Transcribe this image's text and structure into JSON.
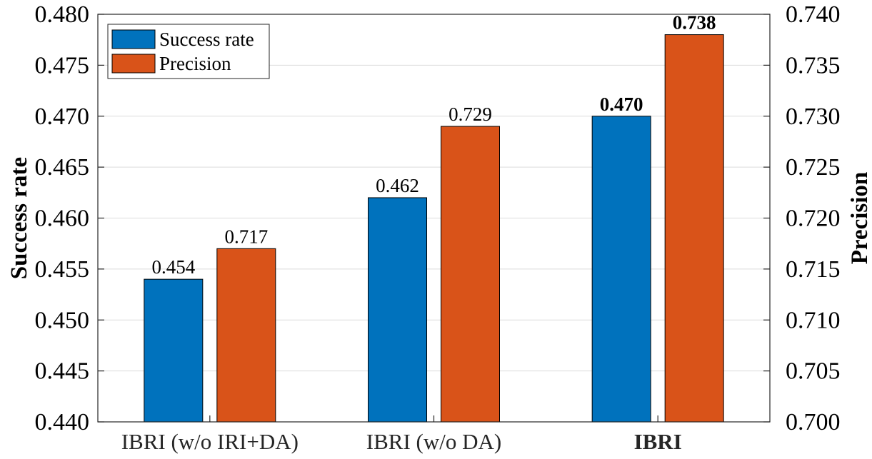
{
  "chart_data": {
    "type": "bar",
    "categories": [
      "IBRI (w/o IRI+DA)",
      "IBRI (w/o DA)",
      "IBRI"
    ],
    "category_bold": [
      false,
      false,
      true
    ],
    "series": [
      {
        "name": "Success rate",
        "axis": "left",
        "values": [
          0.454,
          0.462,
          0.47
        ],
        "labels": [
          "0.454",
          "0.462",
          "0.470"
        ],
        "label_bold": [
          false,
          false,
          true
        ],
        "color": "#0072BD"
      },
      {
        "name": "Precision",
        "axis": "right",
        "values": [
          0.717,
          0.729,
          0.738
        ],
        "labels": [
          "0.717",
          "0.729",
          "0.738"
        ],
        "label_bold": [
          false,
          false,
          true
        ],
        "color": "#D95319"
      }
    ],
    "ylabel_left": "Success rate",
    "ylabel_right": "Precision",
    "ylim_left": [
      0.44,
      0.48
    ],
    "ylim_right": [
      0.7,
      0.74
    ],
    "yticks_left": [
      "0.440",
      "0.445",
      "0.450",
      "0.455",
      "0.460",
      "0.465",
      "0.470",
      "0.475",
      "0.480"
    ],
    "yticks_right": [
      "0.700",
      "0.705",
      "0.710",
      "0.715",
      "0.720",
      "0.725",
      "0.730",
      "0.735",
      "0.740"
    ],
    "grid": "horizontal",
    "legend_position": "top-left"
  }
}
